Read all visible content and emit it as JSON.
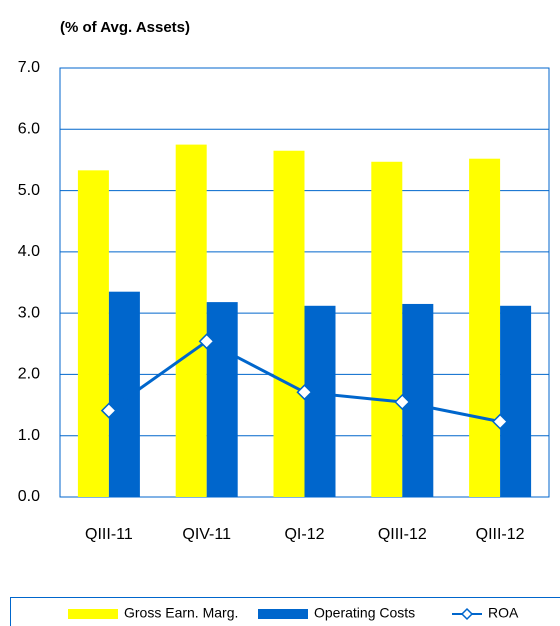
{
  "chart_data": {
    "type": "bar",
    "title": "(% of Avg. Assets)",
    "categories": [
      "QIII-11",
      "QIV-11",
      "QI-12",
      "QIII-12",
      "QIII-12"
    ],
    "series": [
      {
        "name": "Gross Earn. Marg.",
        "type": "bar",
        "color": "#ffff00",
        "values": [
          5.33,
          5.75,
          5.65,
          5.47,
          5.52
        ]
      },
      {
        "name": "Operating Costs",
        "type": "bar",
        "color": "#0066cc",
        "values": [
          3.35,
          3.18,
          3.12,
          3.15,
          3.12
        ]
      },
      {
        "name": "ROA",
        "type": "line",
        "color": "#0066cc",
        "values": [
          1.41,
          2.54,
          1.71,
          1.55,
          1.23
        ]
      }
    ],
    "ylim": [
      0,
      7
    ],
    "yticks": [
      {
        "value": 0,
        "label": "0.0"
      },
      {
        "value": 1,
        "label": "1.0"
      },
      {
        "value": 2,
        "label": "2.0"
      },
      {
        "value": 3,
        "label": "3.0"
      },
      {
        "value": 4,
        "label": "4.0"
      },
      {
        "value": 5,
        "label": "5.0"
      },
      {
        "value": 6,
        "label": "6.0"
      },
      {
        "value": 7,
        "label": "7.0"
      }
    ],
    "grid": true
  }
}
